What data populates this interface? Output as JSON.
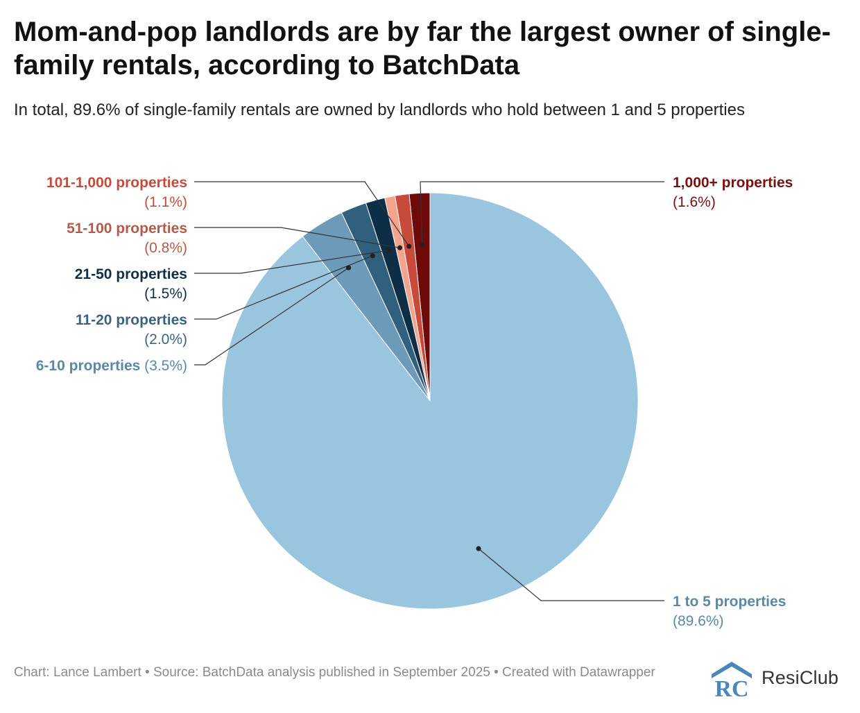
{
  "title": "Mom-and-pop landlords are by far the largest owner of single-family rentals, according to BatchData",
  "subtitle": "In total, 89.6% of single-family rentals are owned by landlords who hold between 1 and 5 properties",
  "footer": {
    "credit": "Chart: Lance Lambert • Source: BatchData analysis published in September 2025 • Created with Datawrapper",
    "brand_name": "ResiClub",
    "brand_mark": "RC",
    "brand_color": "#4a86b8"
  },
  "chart_data": {
    "type": "pie",
    "start": "12 o'clock",
    "direction": "counter-clockwise",
    "slices": [
      {
        "label": "1,000+ properties",
        "value": 1.6,
        "value_label": "(1.6%)",
        "color": "#6e0a0a",
        "label_color": "#7a1010"
      },
      {
        "label": "101-1,000 properties",
        "value": 1.1,
        "value_label": "(1.1%)",
        "color": "#c84a3a",
        "label_color": "#c54b3c"
      },
      {
        "label": "51-100 properties",
        "value": 0.8,
        "value_label": "(0.8%)",
        "color": "#f4a48c",
        "label_color": "#b45a48"
      },
      {
        "label": "21-50 properties",
        "value": 1.5,
        "value_label": "(1.5%)",
        "color": "#0c2f47",
        "label_color": "#0e2f45"
      },
      {
        "label": "11-20 properties",
        "value": 2.0,
        "value_label": "(2.0%)",
        "color": "#31607f",
        "label_color": "#3b6380"
      },
      {
        "label": "6-10 properties",
        "value": 3.5,
        "value_label": "(3.5%)",
        "color": "#6c9ab8",
        "label_color": "#5b88a6"
      },
      {
        "label": "1 to 5 properties",
        "value": 89.6,
        "value_label": "(89.6%)",
        "color": "#9ac5df",
        "label_color": "#5b88a6"
      }
    ]
  }
}
